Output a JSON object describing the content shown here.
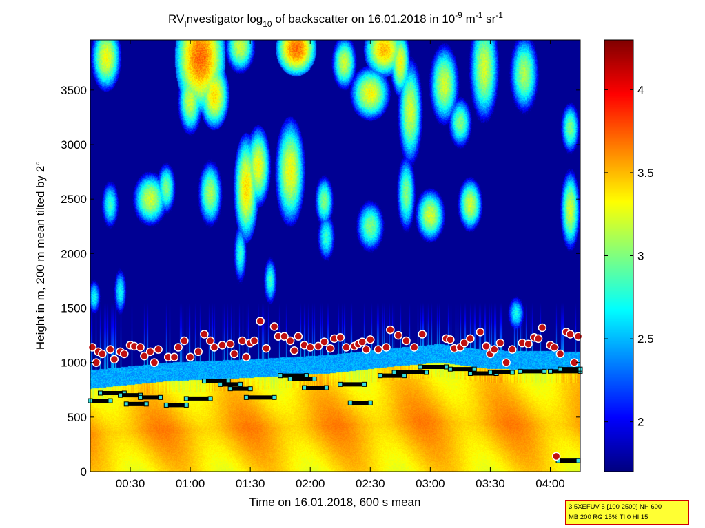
{
  "chart_data": {
    "type": "heatmap",
    "title": {
      "prefix": "RV",
      "sub1": "I",
      "part1": "nvestigator log",
      "sub2": "10",
      "part2": " of backscatter on 16.01.2018 in 10",
      "sup1": "-9",
      "part3": " m",
      "sup2": "-1",
      "part4": " sr",
      "sup3": "-1"
    },
    "xlabel": "Time on 16.01.2018, 600 s mean",
    "ylabel": "Height in m, 200 m mean tilted by 2°",
    "x_unit": "minutes after 00:00",
    "xlim": [
      10,
      255
    ],
    "ylim": [
      0,
      3960
    ],
    "x_ticks": [
      {
        "value": 30,
        "label": "00:30"
      },
      {
        "value": 60,
        "label": "01:00"
      },
      {
        "value": 90,
        "label": "01:30"
      },
      {
        "value": 120,
        "label": "02:00"
      },
      {
        "value": 150,
        "label": "02:30"
      },
      {
        "value": 180,
        "label": "03:00"
      },
      {
        "value": 210,
        "label": "03:30"
      },
      {
        "value": 240,
        "label": "04:00"
      }
    ],
    "y_ticks": [
      {
        "value": 0,
        "label": "0"
      },
      {
        "value": 500,
        "label": "500"
      },
      {
        "value": 1000,
        "label": "1000"
      },
      {
        "value": 1500,
        "label": "1500"
      },
      {
        "value": 2000,
        "label": "2000"
      },
      {
        "value": 2500,
        "label": "2500"
      },
      {
        "value": 3000,
        "label": "3000"
      },
      {
        "value": 3500,
        "label": "3500"
      }
    ],
    "colorbar": {
      "colormap": "jet",
      "clim": [
        1.7,
        4.3
      ],
      "ticks": [
        {
          "value": 2,
          "label": "2"
        },
        {
          "value": 2.5,
          "label": "2.5"
        },
        {
          "value": 3,
          "label": "3"
        },
        {
          "value": 3.5,
          "label": "3.5"
        },
        {
          "value": 4,
          "label": "4"
        }
      ]
    },
    "field_description": {
      "background_level": 1.75,
      "boundary_layer": {
        "top_points": [
          [
            10,
            780
          ],
          [
            50,
            850
          ],
          [
            90,
            880
          ],
          [
            130,
            920
          ],
          [
            160,
            980
          ],
          [
            185,
            1020
          ],
          [
            210,
            960
          ],
          [
            255,
            950
          ]
        ],
        "level_low": 3.25,
        "level_high": 3.55
      },
      "transition_band_level": 2.45,
      "clouds": [
        {
          "t": 18,
          "h": 3800,
          "w": 6,
          "d": 250,
          "v": 3.3
        },
        {
          "t": 65,
          "h": 3800,
          "w": 10,
          "d": 400,
          "v": 3.7
        },
        {
          "t": 72,
          "h": 3450,
          "w": 6,
          "d": 250,
          "v": 3.4
        },
        {
          "t": 85,
          "h": 3900,
          "w": 6,
          "d": 200,
          "v": 3.2
        },
        {
          "t": 113,
          "h": 3880,
          "w": 8,
          "d": 200,
          "v": 3.7
        },
        {
          "t": 137,
          "h": 3750,
          "w": 5,
          "d": 200,
          "v": 3.2
        },
        {
          "t": 157,
          "h": 3870,
          "w": 8,
          "d": 200,
          "v": 3.5
        },
        {
          "t": 165,
          "h": 3750,
          "w": 4,
          "d": 250,
          "v": 3.3
        },
        {
          "t": 150,
          "h": 3470,
          "w": 8,
          "d": 200,
          "v": 3.3
        },
        {
          "t": 170,
          "h": 3300,
          "w": 5,
          "d": 400,
          "v": 3.2
        },
        {
          "t": 187,
          "h": 3550,
          "w": 6,
          "d": 300,
          "v": 3.2
        },
        {
          "t": 207,
          "h": 3700,
          "w": 6,
          "d": 400,
          "v": 3.2
        },
        {
          "t": 195,
          "h": 3200,
          "w": 5,
          "d": 200,
          "v": 3.0
        },
        {
          "t": 227,
          "h": 3650,
          "w": 6,
          "d": 300,
          "v": 3.1
        },
        {
          "t": 250,
          "h": 3150,
          "w": 4,
          "d": 200,
          "v": 3.0
        },
        {
          "t": 60,
          "h": 3400,
          "w": 5,
          "d": 250,
          "v": 3.2
        },
        {
          "t": 88,
          "h": 2600,
          "w": 5,
          "d": 400,
          "v": 3.4
        },
        {
          "t": 94,
          "h": 2800,
          "w": 5,
          "d": 300,
          "v": 3.3
        },
        {
          "t": 110,
          "h": 2750,
          "w": 6,
          "d": 400,
          "v": 3.3
        },
        {
          "t": 40,
          "h": 2500,
          "w": 7,
          "d": 200,
          "v": 3.2
        },
        {
          "t": 48,
          "h": 2600,
          "w": 4,
          "d": 200,
          "v": 3.0
        },
        {
          "t": 70,
          "h": 2550,
          "w": 5,
          "d": 250,
          "v": 3.1
        },
        {
          "t": 127,
          "h": 2480,
          "w": 4,
          "d": 200,
          "v": 3.0
        },
        {
          "t": 168,
          "h": 2550,
          "w": 4,
          "d": 300,
          "v": 3.0
        },
        {
          "t": 180,
          "h": 2350,
          "w": 6,
          "d": 200,
          "v": 3.2
        },
        {
          "t": 200,
          "h": 2450,
          "w": 5,
          "d": 200,
          "v": 3.2
        },
        {
          "t": 250,
          "h": 2400,
          "w": 4,
          "d": 300,
          "v": 3.2
        },
        {
          "t": 150,
          "h": 2250,
          "w": 6,
          "d": 200,
          "v": 3.0
        },
        {
          "t": 128,
          "h": 2150,
          "w": 4,
          "d": 200,
          "v": 2.8
        },
        {
          "t": 20,
          "h": 2450,
          "w": 4,
          "d": 200,
          "v": 2.8
        },
        {
          "t": 85,
          "h": 2000,
          "w": 3,
          "d": 250,
          "v": 2.8
        },
        {
          "t": 25,
          "h": 1650,
          "w": 3,
          "d": 200,
          "v": 2.7
        },
        {
          "t": 12,
          "h": 1600,
          "w": 3,
          "d": 150,
          "v": 2.7
        },
        {
          "t": 100,
          "h": 1750,
          "w": 3,
          "d": 200,
          "v": 2.8
        },
        {
          "t": 223,
          "h": 1450,
          "w": 4,
          "d": 150,
          "v": 2.7
        }
      ]
    },
    "series": [
      {
        "marker": "circle",
        "points": [
          [
            11,
            1140
          ],
          [
            13,
            1000
          ],
          [
            14,
            1100
          ],
          [
            16,
            1080
          ],
          [
            20,
            1120
          ],
          [
            22,
            1030
          ],
          [
            25,
            1100
          ],
          [
            27,
            1080
          ],
          [
            30,
            1160
          ],
          [
            32,
            1150
          ],
          [
            35,
            1140
          ],
          [
            37,
            1060
          ],
          [
            40,
            1100
          ],
          [
            42,
            1000
          ],
          [
            44,
            1120
          ],
          [
            49,
            1050
          ],
          [
            52,
            1050
          ],
          [
            54,
            1140
          ],
          [
            57,
            1200
          ],
          [
            60,
            1050
          ],
          [
            64,
            1100
          ],
          [
            67,
            1260
          ],
          [
            70,
            1200
          ],
          [
            72,
            1140
          ],
          [
            76,
            1160
          ],
          [
            80,
            1170
          ],
          [
            82,
            1080
          ],
          [
            86,
            1200
          ],
          [
            88,
            1050
          ],
          [
            90,
            1180
          ],
          [
            92,
            1200
          ],
          [
            95,
            1380
          ],
          [
            98,
            1130
          ],
          [
            102,
            1330
          ],
          [
            104,
            1240
          ],
          [
            107,
            1240
          ],
          [
            110,
            1200
          ],
          [
            112,
            1110
          ],
          [
            114,
            1240
          ],
          [
            117,
            1160
          ],
          [
            120,
            1140
          ],
          [
            124,
            1150
          ],
          [
            127,
            1190
          ],
          [
            130,
            1130
          ],
          [
            132,
            1220
          ],
          [
            135,
            1230
          ],
          [
            138,
            1140
          ],
          [
            142,
            1150
          ],
          [
            144,
            1170
          ],
          [
            146,
            1190
          ],
          [
            148,
            1120
          ],
          [
            150,
            1210
          ],
          [
            154,
            1120
          ],
          [
            158,
            1140
          ],
          [
            160,
            1300
          ],
          [
            164,
            1250
          ],
          [
            168,
            1200
          ],
          [
            172,
            1140
          ],
          [
            176,
            1260
          ],
          [
            188,
            1220
          ],
          [
            190,
            1210
          ],
          [
            192,
            1130
          ],
          [
            195,
            1140
          ],
          [
            197,
            1180
          ],
          [
            200,
            1220
          ],
          [
            205,
            1280
          ],
          [
            208,
            1150
          ],
          [
            210,
            1080
          ],
          [
            212,
            1120
          ],
          [
            215,
            1180
          ],
          [
            218,
            1000
          ],
          [
            221,
            1120
          ],
          [
            226,
            1180
          ],
          [
            229,
            1170
          ],
          [
            232,
            1230
          ],
          [
            234,
            1220
          ],
          [
            236,
            1320
          ],
          [
            240,
            1160
          ],
          [
            242,
            1140
          ],
          [
            245,
            1080
          ],
          [
            248,
            1280
          ],
          [
            250,
            1260
          ],
          [
            252,
            1000
          ],
          [
            254,
            1240
          ],
          [
            243,
            140
          ]
        ]
      },
      {
        "marker": "square",
        "segments": [
          [
            [
              10,
              650
            ],
            [
              20,
              650
            ]
          ],
          [
            [
              15,
              720
            ],
            [
              27,
              720
            ]
          ],
          [
            [
              25,
              700
            ],
            [
              35,
              700
            ]
          ],
          [
            [
              28,
              620
            ],
            [
              38,
              620
            ]
          ],
          [
            [
              35,
              680
            ],
            [
              45,
              680
            ]
          ],
          [
            [
              48,
              610
            ],
            [
              58,
              610
            ]
          ],
          [
            [
              58,
              670
            ],
            [
              70,
              670
            ]
          ],
          [
            [
              67,
              830
            ],
            [
              79,
              830
            ]
          ],
          [
            [
              75,
              800
            ],
            [
              85,
              800
            ]
          ],
          [
            [
              80,
              760
            ],
            [
              90,
              760
            ]
          ],
          [
            [
              88,
              680
            ],
            [
              102,
              680
            ]
          ],
          [
            [
              105,
              880
            ],
            [
              118,
              880
            ]
          ],
          [
            [
              110,
              850
            ],
            [
              122,
              850
            ]
          ],
          [
            [
              117,
              770
            ],
            [
              128,
              770
            ]
          ],
          [
            [
              135,
              800
            ],
            [
              147,
              800
            ]
          ],
          [
            [
              140,
              630
            ],
            [
              150,
              630
            ]
          ],
          [
            [
              155,
              880
            ],
            [
              167,
              880
            ]
          ],
          [
            [
              162,
              910
            ],
            [
              178,
              910
            ]
          ],
          [
            [
              175,
              960
            ],
            [
              188,
              960
            ]
          ],
          [
            [
              190,
              940
            ],
            [
              202,
              940
            ]
          ],
          [
            [
              200,
              900
            ],
            [
              213,
              900
            ]
          ],
          [
            [
              210,
              910
            ],
            [
              221,
              910
            ]
          ],
          [
            [
              225,
              920
            ],
            [
              237,
              920
            ]
          ],
          [
            [
              240,
              920
            ],
            [
              255,
              920
            ]
          ],
          [
            [
              245,
              940
            ],
            [
              255,
              940
            ]
          ],
          [
            [
              244,
              100
            ],
            [
              254,
              100
            ]
          ]
        ]
      }
    ]
  },
  "info_box": {
    "line1": "3.5XEFUV 5 [100 2500] NH 600",
    "line2": "MB 200 RG 15% TI 0 HI 15"
  }
}
